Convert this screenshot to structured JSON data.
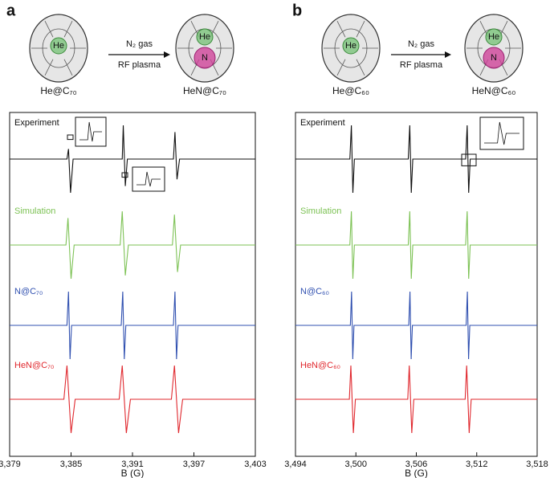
{
  "schemes": [
    {
      "label": "a",
      "reactant": {
        "name": "He@C₇₀",
        "atoms": [
          "He"
        ]
      },
      "arrow_top": "N₂ gas",
      "arrow_bottom": "RF plasma",
      "product": {
        "name": "HeN@C₇₀",
        "atoms": [
          "He",
          "N"
        ]
      }
    },
    {
      "label": "b",
      "reactant": {
        "name": "He@C₆₀",
        "atoms": [
          "He"
        ]
      },
      "arrow_top": "N₂ gas",
      "arrow_bottom": "RF plasma",
      "product": {
        "name": "HeN@C₆₀",
        "atoms": [
          "He",
          "N"
        ]
      }
    }
  ],
  "chart_data": [
    {
      "type": "line",
      "xlabel": "B (G)",
      "xlim": [
        3379,
        3403
      ],
      "ylim": [
        -1,
        1
      ],
      "xticks": [
        {
          "value": 3379,
          "label": "3,379"
        },
        {
          "value": 3385,
          "label": "3,385"
        },
        {
          "value": 3391,
          "label": "3,391"
        },
        {
          "value": 3397,
          "label": "3,397"
        },
        {
          "value": 3403,
          "label": "3,403"
        }
      ],
      "series": [
        {
          "name": "Experiment",
          "color": "#111111",
          "x": [
            3379,
            3384.6,
            3384.75,
            3384.95,
            3385.2,
            3390.0,
            3390.1,
            3390.3,
            3390.5,
            3395.0,
            3395.15,
            3395.35,
            3395.6,
            3403
          ],
          "values": [
            0,
            0,
            0.3,
            -1,
            0,
            0,
            1,
            -0.8,
            0,
            0,
            0.8,
            -0.6,
            0,
            0
          ]
        },
        {
          "name": "Simulation",
          "color": "#7dc255",
          "x": [
            3379,
            3384.5,
            3384.7,
            3385.0,
            3385.3,
            3389.8,
            3390.0,
            3390.3,
            3390.6,
            3394.9,
            3395.1,
            3395.4,
            3395.7,
            3403
          ],
          "values": [
            0,
            0,
            0.8,
            -1,
            0,
            0,
            1,
            -0.9,
            0,
            0,
            0.9,
            -0.8,
            0,
            0
          ]
        },
        {
          "name": "N@C₇₀",
          "color": "#3050b0",
          "x": [
            3379,
            3384.6,
            3384.75,
            3384.9,
            3385.05,
            3389.9,
            3390.05,
            3390.2,
            3390.35,
            3395.0,
            3395.15,
            3395.3,
            3395.45,
            3403
          ],
          "values": [
            0,
            0,
            1,
            -1,
            0,
            0,
            1,
            -1,
            0,
            0,
            1,
            -1,
            0,
            0
          ]
        },
        {
          "name": "HeN@C₇₀",
          "color": "#e0282e",
          "x": [
            3379,
            3384.3,
            3384.6,
            3385.0,
            3385.4,
            3389.7,
            3390.0,
            3390.4,
            3390.8,
            3394.8,
            3395.1,
            3395.5,
            3395.9,
            3403
          ],
          "values": [
            0,
            0,
            1,
            -1,
            0,
            0,
            1,
            -1,
            0,
            0,
            1,
            -1,
            0,
            0
          ]
        }
      ]
    },
    {
      "type": "line",
      "xlabel": "B (G)",
      "xlim": [
        3494,
        3518
      ],
      "ylim": [
        -1,
        1
      ],
      "xticks": [
        {
          "value": 3494,
          "label": "3,494"
        },
        {
          "value": 3500,
          "label": "3,500"
        },
        {
          "value": 3506,
          "label": "3,506"
        },
        {
          "value": 3512,
          "label": "3,512"
        },
        {
          "value": 3518,
          "label": "3,518"
        }
      ],
      "series": [
        {
          "name": "Experiment",
          "color": "#111111",
          "x": [
            3494,
            3499.4,
            3499.55,
            3499.7,
            3499.85,
            3505.2,
            3505.35,
            3505.5,
            3505.65,
            3510.9,
            3511.05,
            3511.2,
            3511.35,
            3518
          ],
          "values": [
            0,
            0,
            1,
            -1,
            0,
            0,
            1,
            -1,
            0,
            0,
            1,
            -1,
            0,
            0
          ]
        },
        {
          "name": "Simulation",
          "color": "#7dc255",
          "x": [
            3494,
            3499.4,
            3499.55,
            3499.7,
            3499.85,
            3505.2,
            3505.35,
            3505.5,
            3505.65,
            3510.9,
            3511.05,
            3511.2,
            3511.35,
            3518
          ],
          "values": [
            0,
            0,
            1,
            -1,
            0,
            0,
            1,
            -1,
            0,
            0,
            1,
            -1,
            0,
            0
          ]
        },
        {
          "name": "N@C₆₀",
          "color": "#3050b0",
          "x": [
            3494,
            3499.45,
            3499.57,
            3499.69,
            3499.81,
            3505.25,
            3505.37,
            3505.49,
            3505.61,
            3510.95,
            3511.07,
            3511.19,
            3511.31,
            3518
          ],
          "values": [
            0,
            0,
            1,
            -1,
            0,
            0,
            1,
            -1,
            0,
            0,
            1,
            -1,
            0,
            0
          ]
        },
        {
          "name": "HeN@C₆₀",
          "color": "#e0282e",
          "x": [
            3494,
            3499.35,
            3499.5,
            3499.75,
            3499.95,
            3505.15,
            3505.3,
            3505.55,
            3505.75,
            3510.85,
            3511.0,
            3511.25,
            3511.45,
            3518
          ],
          "values": [
            0,
            0,
            1,
            -1,
            0,
            0,
            1,
            -1,
            0,
            0,
            1,
            -1,
            0,
            0
          ]
        }
      ]
    }
  ]
}
